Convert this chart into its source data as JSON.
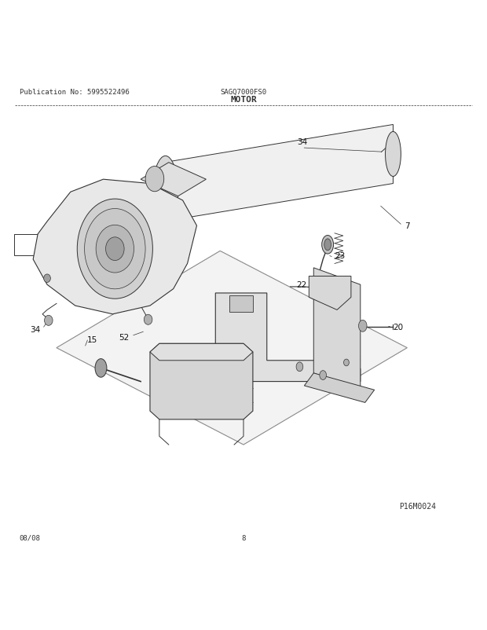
{
  "title": "MOTOR",
  "publication": "Publication No: 5995522496",
  "model": "SAGQ7000FS0",
  "page": "8",
  "date": "08/08",
  "diagram_id": "P16M0024",
  "background_color": "#ffffff",
  "line_color": "#333333"
}
